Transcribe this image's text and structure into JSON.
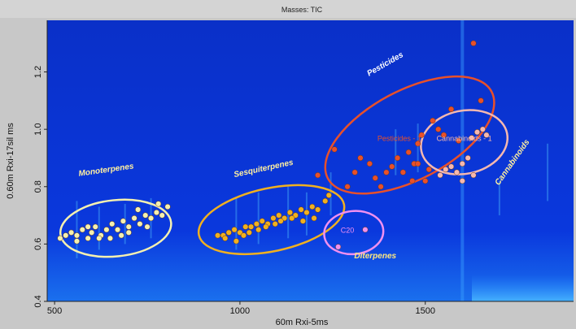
{
  "chart_data": {
    "type": "scatter",
    "title": "Masses: TIC",
    "xlabel": "60m Rxi-5ms",
    "ylabel": "0.60m Rxi-17sil ms",
    "xlim": [
      480,
      1900
    ],
    "ylim": [
      0.4,
      1.38
    ],
    "xticks": [
      500,
      1000,
      1500
    ],
    "yticks": [
      0.4,
      0.6,
      0.8,
      1.0,
      1.2
    ],
    "ytick_labels": [
      "0.4",
      "0.6",
      "0.8",
      "1.0",
      "1.2"
    ],
    "grid": false,
    "background": "#0a2fd6",
    "groups": [
      {
        "label": "Monoterpenes",
        "color": "#f5f0b0",
        "ellipse": {
          "cx": 665,
          "cy": 0.655,
          "rx": 150,
          "ry": 0.098,
          "angle_deg": -6
        },
        "points": [
          [
            515,
            0.62
          ],
          [
            530,
            0.63
          ],
          [
            545,
            0.64
          ],
          [
            560,
            0.63
          ],
          [
            575,
            0.65
          ],
          [
            590,
            0.62
          ],
          [
            600,
            0.64
          ],
          [
            610,
            0.66
          ],
          [
            625,
            0.63
          ],
          [
            640,
            0.65
          ],
          [
            655,
            0.67
          ],
          [
            670,
            0.65
          ],
          [
            685,
            0.68
          ],
          [
            700,
            0.66
          ],
          [
            715,
            0.69
          ],
          [
            730,
            0.67
          ],
          [
            745,
            0.7
          ],
          [
            760,
            0.69
          ],
          [
            775,
            0.71
          ],
          [
            790,
            0.7
          ],
          [
            805,
            0.73
          ],
          [
            560,
            0.61
          ],
          [
            620,
            0.62
          ],
          [
            700,
            0.64
          ],
          [
            750,
            0.66
          ],
          [
            680,
            0.63
          ],
          [
            590,
            0.66
          ],
          [
            650,
            0.62
          ],
          [
            725,
            0.72
          ],
          [
            780,
            0.74
          ]
        ]
      },
      {
        "label": "Sesquiterpenes",
        "color": "#f0b020",
        "ellipse": {
          "cx": 1085,
          "cy": 0.685,
          "rx": 200,
          "ry": 0.11,
          "angle_deg": -12
        },
        "points": [
          [
            940,
            0.63
          ],
          [
            955,
            0.63
          ],
          [
            970,
            0.64
          ],
          [
            985,
            0.65
          ],
          [
            1000,
            0.64
          ],
          [
            1015,
            0.66
          ],
          [
            1030,
            0.66
          ],
          [
            1045,
            0.67
          ],
          [
            1060,
            0.68
          ],
          [
            1075,
            0.67
          ],
          [
            1090,
            0.69
          ],
          [
            1105,
            0.7
          ],
          [
            1120,
            0.69
          ],
          [
            1135,
            0.71
          ],
          [
            1150,
            0.7
          ],
          [
            1165,
            0.72
          ],
          [
            1180,
            0.71
          ],
          [
            1195,
            0.73
          ],
          [
            1210,
            0.72
          ],
          [
            960,
            0.62
          ],
          [
            990,
            0.61
          ],
          [
            1010,
            0.63
          ],
          [
            1025,
            0.64
          ],
          [
            1050,
            0.65
          ],
          [
            1070,
            0.66
          ],
          [
            1095,
            0.67
          ],
          [
            1110,
            0.68
          ],
          [
            1140,
            0.69
          ],
          [
            1170,
            0.68
          ],
          [
            1200,
            0.69
          ],
          [
            1230,
            0.75
          ],
          [
            1240,
            0.77
          ]
        ]
      },
      {
        "label": "Pesticides",
        "inner_label": "Pesticides - 1",
        "color": "#e8502a",
        "ellipse": {
          "cx": 1458,
          "cy": 0.98,
          "rx": 250,
          "ry": 0.155,
          "angle_deg": -28
        },
        "points": [
          [
            1210,
            0.84
          ],
          [
            1255,
            0.93
          ],
          [
            1290,
            0.8
          ],
          [
            1310,
            0.85
          ],
          [
            1325,
            0.9
          ],
          [
            1350,
            0.88
          ],
          [
            1365,
            0.83
          ],
          [
            1380,
            0.8
          ],
          [
            1395,
            0.85
          ],
          [
            1410,
            0.87
          ],
          [
            1425,
            0.9
          ],
          [
            1440,
            0.85
          ],
          [
            1455,
            0.92
          ],
          [
            1470,
            0.88
          ],
          [
            1480,
            0.95
          ],
          [
            1490,
            0.98
          ],
          [
            1500,
            0.82
          ],
          [
            1510,
            0.86
          ],
          [
            1520,
            1.03
          ],
          [
            1535,
            1.0
          ],
          [
            1550,
            0.98
          ],
          [
            1570,
            1.07
          ],
          [
            1590,
            0.96
          ],
          [
            1630,
            1.3
          ],
          [
            1650,
            1.1
          ],
          [
            1465,
            0.82
          ],
          [
            1480,
            0.88
          ]
        ]
      },
      {
        "label": "Cannabinoids",
        "inner_label": "Cannabinoids - 1",
        "color": "#f5b8b0",
        "ellipse": {
          "cx": 1605,
          "cy": 0.955,
          "rx": 118,
          "ry": 0.11,
          "angle_deg": -12
        },
        "points": [
          [
            1540,
            0.84
          ],
          [
            1555,
            0.86
          ],
          [
            1570,
            0.87
          ],
          [
            1585,
            0.85
          ],
          [
            1600,
            0.88
          ],
          [
            1615,
            0.9
          ],
          [
            1625,
            0.97
          ],
          [
            1640,
            0.99
          ],
          [
            1655,
            1.0
          ],
          [
            1665,
            0.98
          ],
          [
            1630,
            0.84
          ],
          [
            1600,
            0.82
          ]
        ]
      },
      {
        "label": "Diterpenes",
        "inner_label": "C20",
        "color": "#f090f0",
        "ellipse": {
          "cx": 1307,
          "cy": 0.64,
          "rx": 80,
          "ry": 0.075,
          "angle_deg": -6
        },
        "points": [
          [
            1265,
            0.59
          ],
          [
            1338,
            0.65
          ]
        ]
      }
    ]
  }
}
